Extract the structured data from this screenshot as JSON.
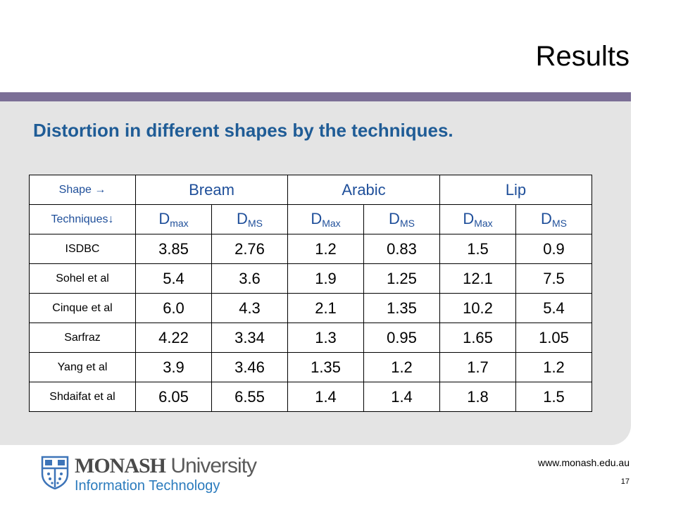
{
  "slide": {
    "title": "Results",
    "subtitle": "Distortion in different shapes by the techniques.",
    "url": "www.monash.edu.au",
    "page_number": "17"
  },
  "table": {
    "shape_label": "Shape →",
    "techniques_label": "Techniques↓",
    "groups": [
      "Bream",
      "Arabic",
      "Lip"
    ],
    "subheaders": [
      {
        "base": "D",
        "sub": "max"
      },
      {
        "base": "D",
        "sub": "MS"
      },
      {
        "base": "D",
        "sub": "Max"
      },
      {
        "base": "D",
        "sub": "MS"
      },
      {
        "base": "D",
        "sub": "Max"
      },
      {
        "base": "D",
        "sub": "MS"
      }
    ],
    "rows": [
      {
        "technique": "ISDBC",
        "values": [
          "3.85",
          "2.76",
          "1.2",
          "0.83",
          "1.5",
          "0.9"
        ]
      },
      {
        "technique": "Sohel et al",
        "values": [
          "5.4",
          "3.6",
          "1.9",
          "1.25",
          "12.1",
          "7.5"
        ]
      },
      {
        "technique": "Cinque et al",
        "values": [
          "6.0",
          "4.3",
          "2.1",
          "1.35",
          "10.2",
          "5.4"
        ]
      },
      {
        "technique": "Sarfraz",
        "values": [
          "4.22",
          "3.34",
          "1.3",
          "0.95",
          "1.65",
          "1.05"
        ]
      },
      {
        "technique": "Yang et al",
        "values": [
          "3.9",
          "3.46",
          "1.35",
          "1.2",
          "1.7",
          "1.2"
        ]
      },
      {
        "technique": "Shdaifat et al",
        "values": [
          "6.05",
          "6.55",
          "1.4",
          "1.4",
          "1.8",
          "1.5"
        ]
      }
    ]
  },
  "logo": {
    "name_bold": "MONASH",
    "name_regular": " University",
    "faculty": "Information Technology"
  },
  "colors": {
    "title_bar": "#7b6f96",
    "panel": "#e4e4e4",
    "subtitle": "#1f5c96",
    "header_text": "#1f4f9a",
    "logo_blue": "#2b7bbd"
  }
}
